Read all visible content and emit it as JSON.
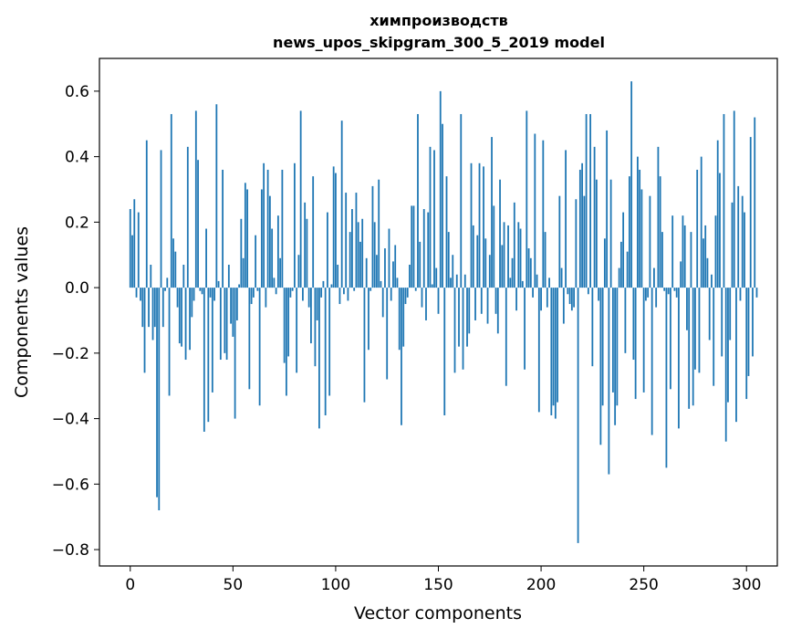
{
  "chart_data": {
    "type": "bar",
    "title_line1": "химпроизводств",
    "title_line2": "news_upos_skipgram_300_5_2019 model",
    "xlabel": "Vector components",
    "ylabel": "Components values",
    "xlim": [
      -15,
      315
    ],
    "ylim": [
      -0.85,
      0.7
    ],
    "xticks": [
      0,
      50,
      100,
      150,
      200,
      250,
      300
    ],
    "xtick_labels": [
      "0",
      "50",
      "100",
      "150",
      "200",
      "250",
      "300"
    ],
    "yticks": [
      0.6,
      0.4,
      0.2,
      0.0,
      -0.2,
      -0.4,
      -0.6,
      -0.8
    ],
    "ytick_labels": [
      "0.6",
      "0.4",
      "0.2",
      "0.0",
      "−0.2",
      "−0.4",
      "−0.6",
      "−0.8"
    ],
    "bar_color": "#1f77b4",
    "grid": false,
    "x_start": 0,
    "values": [
      0.24,
      0.16,
      0.27,
      -0.03,
      0.23,
      -0.04,
      -0.12,
      -0.26,
      0.45,
      -0.12,
      0.07,
      -0.16,
      -0.12,
      -0.64,
      -0.68,
      0.42,
      -0.12,
      -0.01,
      0.03,
      -0.33,
      0.53,
      0.15,
      0.11,
      -0.06,
      -0.17,
      -0.18,
      0.07,
      -0.22,
      0.43,
      -0.19,
      -0.09,
      -0.04,
      0.54,
      0.39,
      -0.01,
      -0.02,
      -0.44,
      0.18,
      -0.41,
      -0.03,
      -0.32,
      -0.04,
      0.56,
      0.02,
      -0.22,
      0.36,
      -0.2,
      -0.22,
      0.07,
      -0.11,
      -0.15,
      -0.4,
      -0.1,
      0.01,
      0.21,
      0.09,
      0.32,
      0.3,
      -0.31,
      -0.05,
      -0.03,
      0.16,
      -0.01,
      -0.36,
      0.3,
      0.38,
      -0.06,
      0.36,
      0.28,
      0.18,
      0.03,
      -0.02,
      0.22,
      0.09,
      0.36,
      -0.23,
      -0.33,
      -0.21,
      -0.03,
      -0.01,
      0.38,
      -0.26,
      0.1,
      0.54,
      -0.04,
      0.26,
      0.21,
      -0.06,
      -0.17,
      0.34,
      -0.24,
      -0.1,
      -0.43,
      -0.03,
      0.02,
      -0.39,
      0.23,
      -0.33,
      0.01,
      0.37,
      0.35,
      0.07,
      -0.05,
      0.51,
      -0.02,
      0.29,
      -0.04,
      0.17,
      0.24,
      -0.01,
      0.29,
      0.2,
      0.14,
      0.21,
      -0.35,
      0.09,
      -0.19,
      -0.01,
      0.31,
      0.2,
      0.1,
      0.33,
      0.02,
      -0.09,
      0.12,
      -0.28,
      0.18,
      -0.04,
      0.08,
      0.13,
      0.03,
      -0.19,
      -0.42,
      -0.18,
      -0.05,
      -0.03,
      0.07,
      0.25,
      0.25,
      -0.01,
      0.53,
      0.14,
      -0.06,
      0.24,
      -0.1,
      0.23,
      0.43,
      0.01,
      0.42,
      0.06,
      -0.08,
      0.6,
      0.5,
      -0.39,
      0.34,
      0.17,
      0.03,
      0.1,
      -0.26,
      0.04,
      -0.18,
      0.53,
      -0.25,
      0.04,
      -0.18,
      -0.14,
      0.38,
      0.19,
      -0.1,
      0.16,
      0.38,
      -0.08,
      0.37,
      0.15,
      -0.11,
      0.1,
      0.46,
      0.25,
      -0.08,
      -0.14,
      0.33,
      0.13,
      0.2,
      -0.3,
      0.19,
      0.03,
      0.09,
      0.26,
      -0.07,
      0.2,
      0.18,
      0.02,
      -0.25,
      0.54,
      0.12,
      0.09,
      -0.03,
      0.47,
      0.04,
      -0.38,
      -0.07,
      0.45,
      0.17,
      -0.06,
      0.03,
      -0.39,
      -0.36,
      -0.4,
      -0.35,
      0.28,
      0.06,
      -0.11,
      0.42,
      -0.02,
      -0.05,
      -0.07,
      -0.06,
      0.27,
      -0.78,
      0.36,
      0.38,
      0.28,
      0.53,
      -0.02,
      0.53,
      -0.24,
      0.43,
      0.33,
      -0.04,
      -0.48,
      -0.36,
      0.15,
      0.48,
      -0.57,
      0.33,
      -0.32,
      -0.42,
      -0.36,
      0.06,
      0.14,
      0.23,
      -0.2,
      0.11,
      0.34,
      0.63,
      -0.22,
      -0.34,
      0.4,
      0.36,
      0.3,
      -0.32,
      -0.04,
      -0.03,
      0.28,
      -0.45,
      0.06,
      -0.06,
      0.43,
      0.34,
      0.17,
      -0.01,
      -0.55,
      -0.02,
      -0.31,
      0.22,
      -0.01,
      -0.03,
      -0.43,
      0.08,
      0.22,
      0.19,
      -0.13,
      -0.37,
      0.17,
      -0.36,
      -0.25,
      0.36,
      -0.26,
      0.4,
      0.15,
      0.19,
      0.09,
      -0.16,
      0.04,
      -0.3,
      0.22,
      0.45,
      0.35,
      -0.21,
      0.53,
      -0.47,
      -0.35,
      -0.16,
      0.26,
      0.54,
      -0.41,
      0.31,
      -0.04,
      0.28,
      0.23,
      -0.34,
      -0.27,
      0.46,
      -0.21,
      0.52,
      -0.03
    ]
  }
}
